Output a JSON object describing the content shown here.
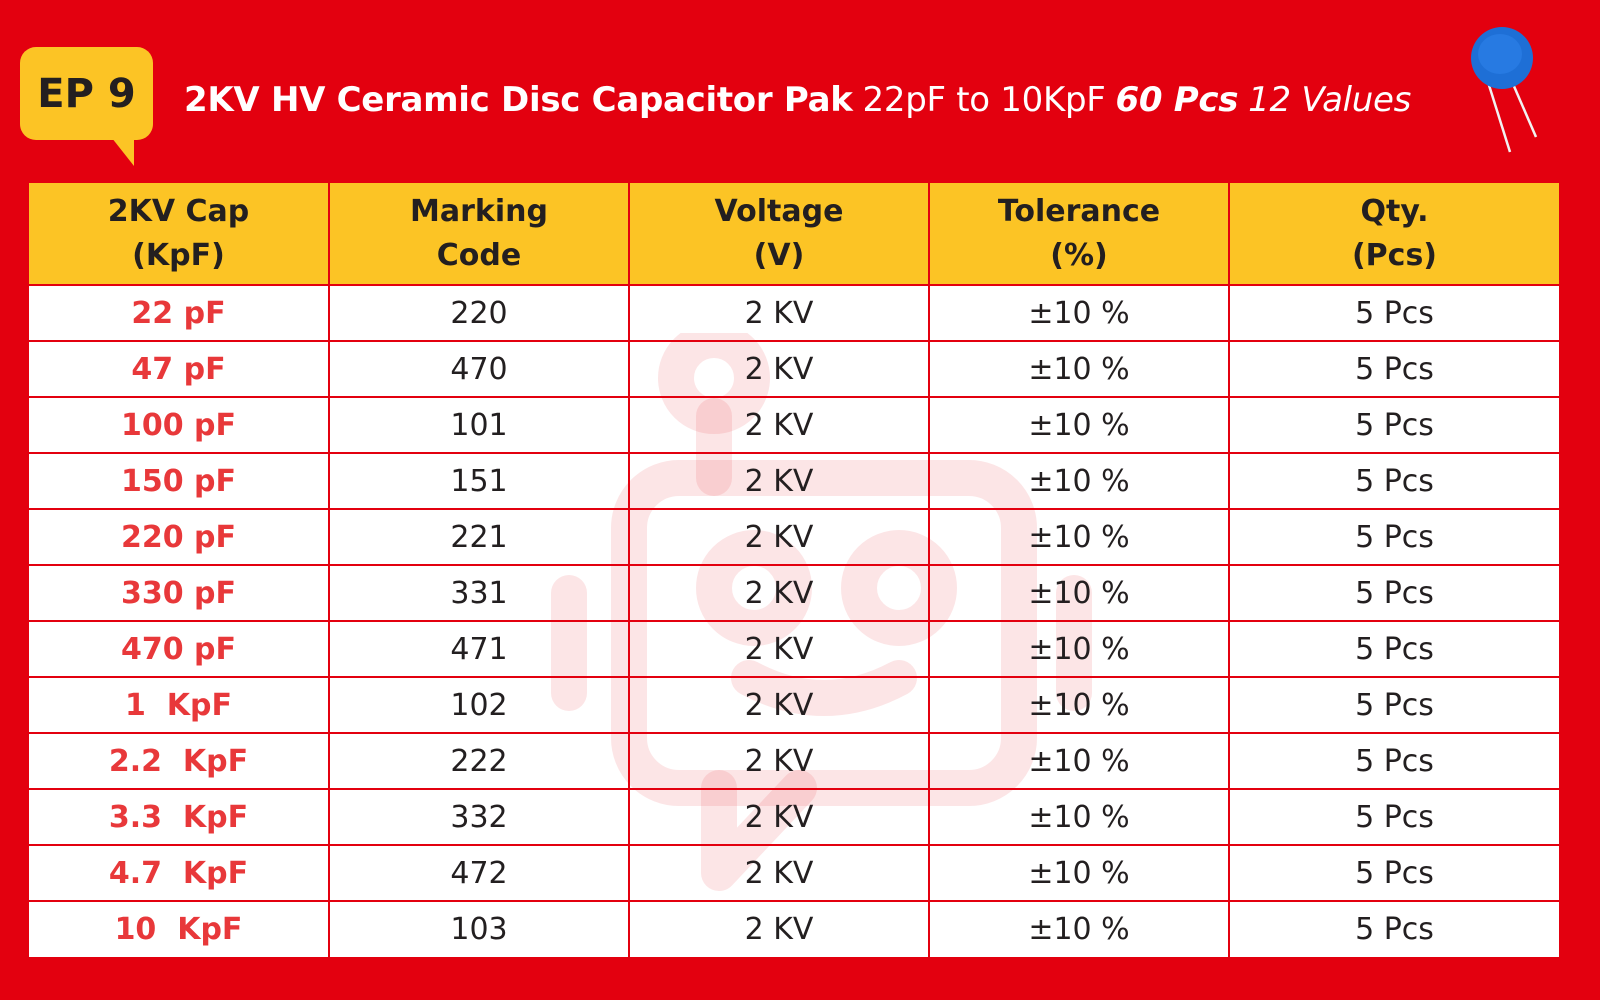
{
  "badge": {
    "label": "EP 9"
  },
  "title": {
    "bold": "2KV HV Ceramic Disc Capacitor Pak",
    "range": "22pF to 10KpF",
    "count": "60 Pcs",
    "values": "12 Values"
  },
  "colors": {
    "background": "#e3000f",
    "header": "#fcc425",
    "capacitance_text": "#e8383a",
    "capacitor_disc": "#1e6fd6"
  },
  "table": {
    "headers": [
      {
        "line1": "2KV Cap",
        "line2": "(KpF)"
      },
      {
        "line1": "Marking",
        "line2": "Code"
      },
      {
        "line1": "Voltage",
        "line2": "(V)"
      },
      {
        "line1": "Tolerance",
        "line2": "(%)"
      },
      {
        "line1": "Qty.",
        "line2": "(Pcs)"
      }
    ],
    "rows": [
      {
        "cap": "22 pF",
        "code": "220",
        "voltage": "2 KV",
        "tolerance": "±10 %",
        "qty": "5 Pcs"
      },
      {
        "cap": "47 pF",
        "code": "470",
        "voltage": "2 KV",
        "tolerance": "±10 %",
        "qty": "5 Pcs"
      },
      {
        "cap": "100 pF",
        "code": "101",
        "voltage": "2 KV",
        "tolerance": "±10 %",
        "qty": "5 Pcs"
      },
      {
        "cap": "150 pF",
        "code": "151",
        "voltage": "2 KV",
        "tolerance": "±10 %",
        "qty": "5 Pcs"
      },
      {
        "cap": "220 pF",
        "code": "221",
        "voltage": "2 KV",
        "tolerance": "±10 %",
        "qty": "5 Pcs"
      },
      {
        "cap": "330 pF",
        "code": "331",
        "voltage": "2 KV",
        "tolerance": "±10 %",
        "qty": "5 Pcs"
      },
      {
        "cap": "470 pF",
        "code": "471",
        "voltage": "2 KV",
        "tolerance": "±10 %",
        "qty": "5 Pcs"
      },
      {
        "cap": "1  KpF",
        "code": "102",
        "voltage": "2 KV",
        "tolerance": "±10 %",
        "qty": "5 Pcs"
      },
      {
        "cap": "2.2  KpF",
        "code": "222",
        "voltage": "2 KV",
        "tolerance": "±10 %",
        "qty": "5 Pcs"
      },
      {
        "cap": "3.3  KpF",
        "code": "332",
        "voltage": "2 KV",
        "tolerance": "±10 %",
        "qty": "5 Pcs"
      },
      {
        "cap": "4.7  KpF",
        "code": "472",
        "voltage": "2 KV",
        "tolerance": "±10 %",
        "qty": "5 Pcs"
      },
      {
        "cap": "10  KpF",
        "code": "103",
        "voltage": "2 KV",
        "tolerance": "±10 %",
        "qty": "5 Pcs"
      }
    ]
  }
}
